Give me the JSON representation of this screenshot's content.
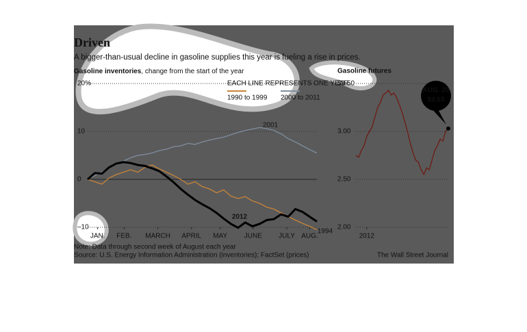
{
  "header": {
    "title": "Driven",
    "subtitle": "A bigger-than-usual decline in gasoline supplies this year is fueling a rise in prices."
  },
  "chart_data": [
    {
      "type": "line",
      "title": "Gasoline inventories",
      "subtitle": ", change from the start of the year",
      "x": [
        0,
        1,
        2,
        3,
        4,
        5,
        6,
        7,
        8,
        9,
        10,
        11,
        12,
        13,
        14,
        15,
        16,
        17,
        18,
        19,
        20,
        21,
        22,
        23,
        24,
        25,
        26,
        27,
        28,
        29,
        30,
        31,
        32
      ],
      "xlim": [
        0,
        32
      ],
      "xticks": [
        {
          "value": 1.4,
          "label": "JAN."
        },
        {
          "value": 5.1,
          "label": "FEB."
        },
        {
          "value": 9.8,
          "label": "MARCH"
        },
        {
          "value": 14.5,
          "label": "APRIL"
        },
        {
          "value": 18.5,
          "label": "MAY"
        },
        {
          "value": 23.1,
          "label": "JUNE"
        },
        {
          "value": 27.8,
          "label": "JULY"
        },
        {
          "value": 31,
          "label": "AUG."
        }
      ],
      "ylim": [
        -10,
        20
      ],
      "yticks": [
        {
          "value": 20,
          "label": "20%"
        },
        10,
        0,
        {
          "value": -10,
          "label": "–10"
        }
      ],
      "grid": true,
      "legend": {
        "title": "EACH LINE REPRESENTS ONE YEAR",
        "items": [
          {
            "label": "1990 to 1999",
            "color": "#c8843a"
          },
          {
            "label": "2000 to 2011",
            "color": "#7f8e9e"
          }
        ]
      },
      "series": [
        {
          "name": "2001",
          "color": "#7f8e9e",
          "values": [
            0,
            0.8,
            1.5,
            2.5,
            3.2,
            3.8,
            4.5,
            5,
            5.2,
            5.5,
            6,
            6.3,
            6.8,
            7,
            7.5,
            7.3,
            7.8,
            8.2,
            8.5,
            8.8,
            9.3,
            9.8,
            10.2,
            10.5,
            10.8,
            10.6,
            10.2,
            9.5,
            8.5,
            7.8,
            7,
            6.2,
            5.5
          ]
        },
        {
          "name": "1994",
          "color": "#c8843a",
          "values": [
            0,
            -0.5,
            -1,
            0.3,
            1,
            1.5,
            2,
            1.5,
            2.5,
            3,
            2.2,
            1.5,
            0.8,
            0,
            -1,
            -0.5,
            -1.5,
            -2,
            -2.8,
            -2.2,
            -3.5,
            -4,
            -3.6,
            -4.5,
            -5,
            -5.8,
            -6.2,
            -7,
            -7.8,
            -8.5,
            -9.2,
            -9.8,
            -10.5
          ]
        },
        {
          "name": "2012",
          "color": "#000000",
          "values": [
            0,
            1.3,
            1.2,
            2.5,
            3.3,
            3.6,
            3.4,
            3.0,
            2.8,
            2.3,
            1.7,
            0.6,
            -0.6,
            -2,
            -3.2,
            -4.3,
            -5.2,
            -6,
            -7,
            -8.2,
            -9.3,
            -10.1,
            -9,
            -9.8,
            -9.3,
            -8.5,
            -8.3,
            -7.3,
            -7.8,
            -6.2,
            -6.8,
            -7.8,
            -8.8
          ]
        }
      ]
    },
    {
      "type": "line",
      "title": "Gasoline futures",
      "x": [
        0,
        1,
        2,
        3,
        4,
        5,
        6,
        7,
        8,
        9,
        10,
        11,
        12,
        13,
        14,
        15,
        16,
        17,
        18,
        19,
        20,
        21,
        22,
        23,
        24,
        25,
        26,
        27,
        28,
        29,
        30,
        31,
        32,
        33,
        34
      ],
      "xlim": [
        0,
        34
      ],
      "xticks": [
        {
          "value": 4,
          "label": "2012"
        }
      ],
      "ylim": [
        2,
        3.5
      ],
      "yticks": [
        {
          "value": 3.5,
          "label": "$3.50"
        },
        {
          "value": 3,
          "label": "3.00"
        },
        {
          "value": 2.5,
          "label": "2.50"
        },
        {
          "value": 2,
          "label": "2.00"
        }
      ],
      "grid": true,
      "annotation": {
        "date": "AUG. 20",
        "value": "$3.03"
      },
      "series": [
        {
          "color": "#6e1b14",
          "values": [
            2.75,
            2.73,
            2.8,
            2.85,
            2.95,
            3.0,
            3.05,
            3.15,
            3.25,
            3.3,
            3.38,
            3.4,
            3.43,
            3.38,
            3.4,
            3.35,
            3.28,
            3.2,
            3.1,
            3.0,
            2.88,
            2.78,
            2.7,
            2.68,
            2.6,
            2.55,
            2.62,
            2.6,
            2.7,
            2.8,
            2.85,
            2.92,
            2.9,
            3.0,
            3.03
          ]
        }
      ]
    }
  ],
  "footer": {
    "note": "Note: Data through second week of August each year",
    "source": "Source: U.S. Energy Information Administration (inventories); FactSet (prices)",
    "credit": "The Wall Street Journal"
  }
}
